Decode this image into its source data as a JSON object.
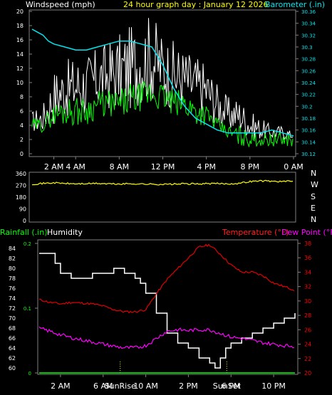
{
  "header": {
    "wind_label": "Windspeed (mph)",
    "title": "24 hour graph day : January 12 2026",
    "baro_label": "Barometer (.in)"
  },
  "colors": {
    "background": "#000000",
    "axis": "#808080",
    "wind_gust": "#ffffff",
    "wind_avg": "#00ff00",
    "barometer": "#00e5ee",
    "direction": "#ffff00",
    "temperature": "#e00000",
    "dew_point": "#ff00ff",
    "humidity": "#ffffff",
    "rain": "#00ff00",
    "title": "#ffff00",
    "rain_label": "#00ff00",
    "humidity_label": "#ffffff",
    "temp_label": "#ff2020",
    "dew_label": "#ff00ff",
    "baro_label": "#00e5ee",
    "left_ticks": "#ffffff",
    "right_ticks_baro": "#00e5ee",
    "right_ticks_temp": "#ff0000",
    "rain_ticks": "#00ff00"
  },
  "chart_data": [
    {
      "type": "line",
      "name_ref": "wind-barometer",
      "x_range_hours": [
        0,
        24
      ],
      "x_tick_labels": [
        "2 AM",
        "4 AM",
        "8 AM",
        "12 PM",
        "4 PM",
        "8 PM",
        "0 AM"
      ],
      "x_tick_hours": [
        2,
        4,
        8,
        12,
        16,
        20,
        24
      ],
      "ylabel_left": "Windspeed (mph)",
      "ylim_left": [
        0,
        20
      ],
      "y_ticks_left": [
        "0",
        "2",
        "4",
        "6",
        "8",
        "10",
        "12",
        "14",
        "16",
        "18",
        "20"
      ],
      "ylabel_right": "Barometer (.in)",
      "ylim_right": [
        30.12,
        30.36
      ],
      "y_ticks_right": [
        "30.12",
        "30.14",
        "30.16",
        "30.18",
        "30.2",
        "30.22",
        "30.24",
        "30.26",
        "30.28",
        "30.3",
        "30.32",
        "30.34",
        "30.36"
      ],
      "series": [
        {
          "role": "gust",
          "hours": [
            0,
            1,
            2,
            3,
            4,
            5,
            6,
            7,
            8,
            9,
            10,
            11,
            12,
            13,
            14,
            15,
            16,
            17,
            18,
            19,
            20,
            21,
            22,
            23,
            24
          ],
          "low": [
            3,
            3,
            4,
            5,
            5,
            5,
            6,
            6,
            6,
            6,
            7,
            7,
            7,
            6,
            6,
            5,
            5,
            4,
            3,
            3,
            2,
            2,
            2,
            2,
            2
          ],
          "high": [
            6,
            7,
            12,
            13,
            14,
            14,
            15,
            16,
            17,
            18,
            19,
            20,
            17,
            16,
            15,
            14,
            13,
            10,
            8,
            8,
            6,
            5,
            4,
            4,
            3
          ]
        },
        {
          "role": "average",
          "hours": [
            0,
            1,
            2,
            3,
            4,
            5,
            6,
            7,
            8,
            9,
            10,
            11,
            12,
            13,
            14,
            15,
            16,
            17,
            18,
            19,
            20,
            21,
            22,
            23,
            24
          ],
          "low": [
            3,
            3,
            4,
            4,
            4,
            4,
            5,
            5,
            5,
            5,
            6,
            6,
            6,
            5,
            5,
            4,
            4,
            3,
            2,
            1,
            1,
            1,
            1,
            1,
            1
          ],
          "high": [
            5,
            5,
            7,
            8,
            8,
            8,
            9,
            9,
            9,
            10,
            10,
            11,
            10,
            9,
            9,
            8,
            7,
            5,
            4,
            4,
            3,
            3,
            3,
            3,
            3
          ]
        },
        {
          "role": "barometer",
          "hours": [
            0,
            0.5,
            1,
            1.5,
            2,
            3,
            4,
            5,
            6,
            7,
            8,
            9,
            10,
            11,
            12,
            13,
            14,
            15,
            16,
            17,
            18,
            19,
            20,
            21,
            22,
            23,
            24
          ],
          "values": [
            30.33,
            30.325,
            30.32,
            30.31,
            30.305,
            30.3,
            30.295,
            30.295,
            30.3,
            30.305,
            30.31,
            30.31,
            30.305,
            30.3,
            30.27,
            30.23,
            30.2,
            30.18,
            30.17,
            30.16,
            30.155,
            30.155,
            30.155,
            30.155,
            30.16,
            30.155,
            30.15
          ]
        }
      ]
    },
    {
      "type": "line",
      "name_ref": "wind-direction",
      "ylim": [
        0,
        360
      ],
      "y_ticks_left": [
        "0",
        "90",
        "180",
        "270",
        "360"
      ],
      "compass_labels": [
        "N",
        "W",
        "S",
        "E",
        "N"
      ],
      "series": [
        {
          "role": "direction",
          "hours": [
            0,
            1,
            2,
            3,
            4,
            5,
            6,
            7,
            8,
            9,
            10,
            11,
            12,
            13,
            14,
            15,
            16,
            17,
            18,
            19,
            20,
            21,
            22,
            23,
            24
          ],
          "values": [
            280,
            285,
            290,
            285,
            282,
            283,
            285,
            282,
            280,
            283,
            281,
            279,
            278,
            280,
            282,
            281,
            283,
            284,
            282,
            286,
            300,
            305,
            302,
            300,
            302
          ]
        }
      ]
    },
    {
      "type": "line",
      "name_ref": "temperature-humidity-rain",
      "legend": {
        "rain": "Rainfall (.in)",
        "humidity": "Humidity",
        "temperature": "Temperature (°F)",
        "dew_point": "Dew Point (°F)"
      },
      "x_tick_labels": [
        "2 AM",
        "6 AM",
        "10 AM",
        "2 PM",
        "6 PM",
        "10 PM"
      ],
      "x_tick_hours": [
        2,
        6,
        10,
        14,
        18,
        22
      ],
      "sun_labels": [
        {
          "text": "SunRise",
          "hour": 7.6
        },
        {
          "text": "SunSet",
          "hour": 17.6
        }
      ],
      "ylim_humidity": [
        59,
        85
      ],
      "y_ticks_humidity": [
        "60",
        "62",
        "64",
        "66",
        "68",
        "70",
        "72",
        "74",
        "76",
        "78",
        "80",
        "82",
        "84"
      ],
      "ylim_rain": [
        0,
        0.2
      ],
      "y_ticks_rain": [
        "0",
        "0.1",
        "0.2"
      ],
      "ylim_temp": [
        20,
        38
      ],
      "y_ticks_temp": [
        "20",
        "22",
        "24",
        "26",
        "28",
        "30",
        "32",
        "34",
        "36",
        "38"
      ],
      "series": [
        {
          "role": "humidity",
          "hours": [
            0,
            0.5,
            1,
            1.5,
            2,
            3,
            4,
            5,
            6,
            7,
            8,
            9,
            9.5,
            10,
            11,
            12,
            13,
            14,
            15,
            16,
            16.5,
            17,
            17.5,
            18,
            19,
            20,
            21,
            22,
            23,
            24
          ],
          "values": [
            83,
            83,
            83,
            81,
            79,
            78,
            78,
            79,
            79,
            80,
            79,
            78,
            77,
            75,
            71,
            67,
            65,
            64,
            62,
            61,
            60,
            62,
            64,
            65,
            66,
            67,
            68,
            69,
            70,
            71
          ]
        },
        {
          "role": "temperature",
          "hours": [
            0,
            1,
            2,
            3,
            4,
            5,
            6,
            7,
            8,
            9,
            10,
            11,
            12,
            13,
            14,
            15,
            16,
            17,
            18,
            19,
            20,
            21,
            22,
            23,
            24
          ],
          "values": [
            30.2,
            29.8,
            29.6,
            29.8,
            29.7,
            29.6,
            29.3,
            28.8,
            28.5,
            28.5,
            28.8,
            31,
            33,
            34.5,
            36,
            37.5,
            37.8,
            36.5,
            35,
            34,
            34,
            33.5,
            32.5,
            32,
            31.5
          ]
        },
        {
          "role": "dew_point",
          "hours": [
            0,
            1,
            2,
            3,
            4,
            5,
            6,
            7,
            8,
            9,
            10,
            11,
            12,
            13,
            14,
            15,
            16,
            17,
            18,
            19,
            20,
            21,
            22,
            23,
            24
          ],
          "values": [
            26.2,
            25.8,
            25.3,
            24.9,
            24.6,
            24.3,
            24,
            23.7,
            23.5,
            23.5,
            23.8,
            24.8,
            25.8,
            26,
            25.9,
            26,
            26,
            25.5,
            25,
            24.8,
            24.5,
            24.2,
            24,
            23.8,
            23.7
          ]
        },
        {
          "role": "rain",
          "hours": [
            0,
            24
          ],
          "values": [
            0,
            0
          ]
        }
      ]
    }
  ]
}
